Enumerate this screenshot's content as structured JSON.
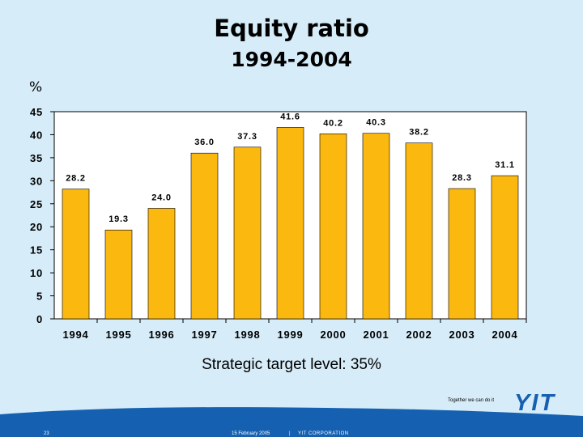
{
  "slide": {
    "title_line1": "Equity ratio",
    "title_line2": "1994-2004",
    "unit_label": "%",
    "target_text": "Strategic target level: 35%"
  },
  "chart_data": {
    "type": "bar",
    "categories": [
      "1994",
      "1995",
      "1996",
      "1997",
      "1998",
      "1999",
      "2000",
      "2001",
      "2002",
      "2003",
      "2004"
    ],
    "values": [
      28.2,
      19.3,
      24.0,
      36.0,
      37.3,
      41.6,
      40.2,
      40.3,
      38.2,
      28.3,
      31.1
    ],
    "value_labels": [
      "28.2",
      "19.3",
      "24.0",
      "36.0",
      "37.3",
      "41.6",
      "40.2",
      "40.3",
      "38.2",
      "28.3",
      "31.1"
    ],
    "y_ticks": [
      "0",
      "5",
      "10",
      "15",
      "20",
      "25",
      "30",
      "35",
      "40",
      "45"
    ],
    "ylim": [
      0,
      45
    ],
    "title": "Equity ratio",
    "subtitle": "1994-2004",
    "ylabel": "%",
    "xlabel": "",
    "grid": false,
    "bar_color": "#fbb80f",
    "plot_background": "#ffffff"
  },
  "footer": {
    "tagline": "Together we can do it",
    "logo_text": "YIT",
    "page_number": "23",
    "date": "15 February 2005",
    "separator": "|",
    "company": "YIT CORPORATION",
    "band_color": "#1560b0"
  }
}
